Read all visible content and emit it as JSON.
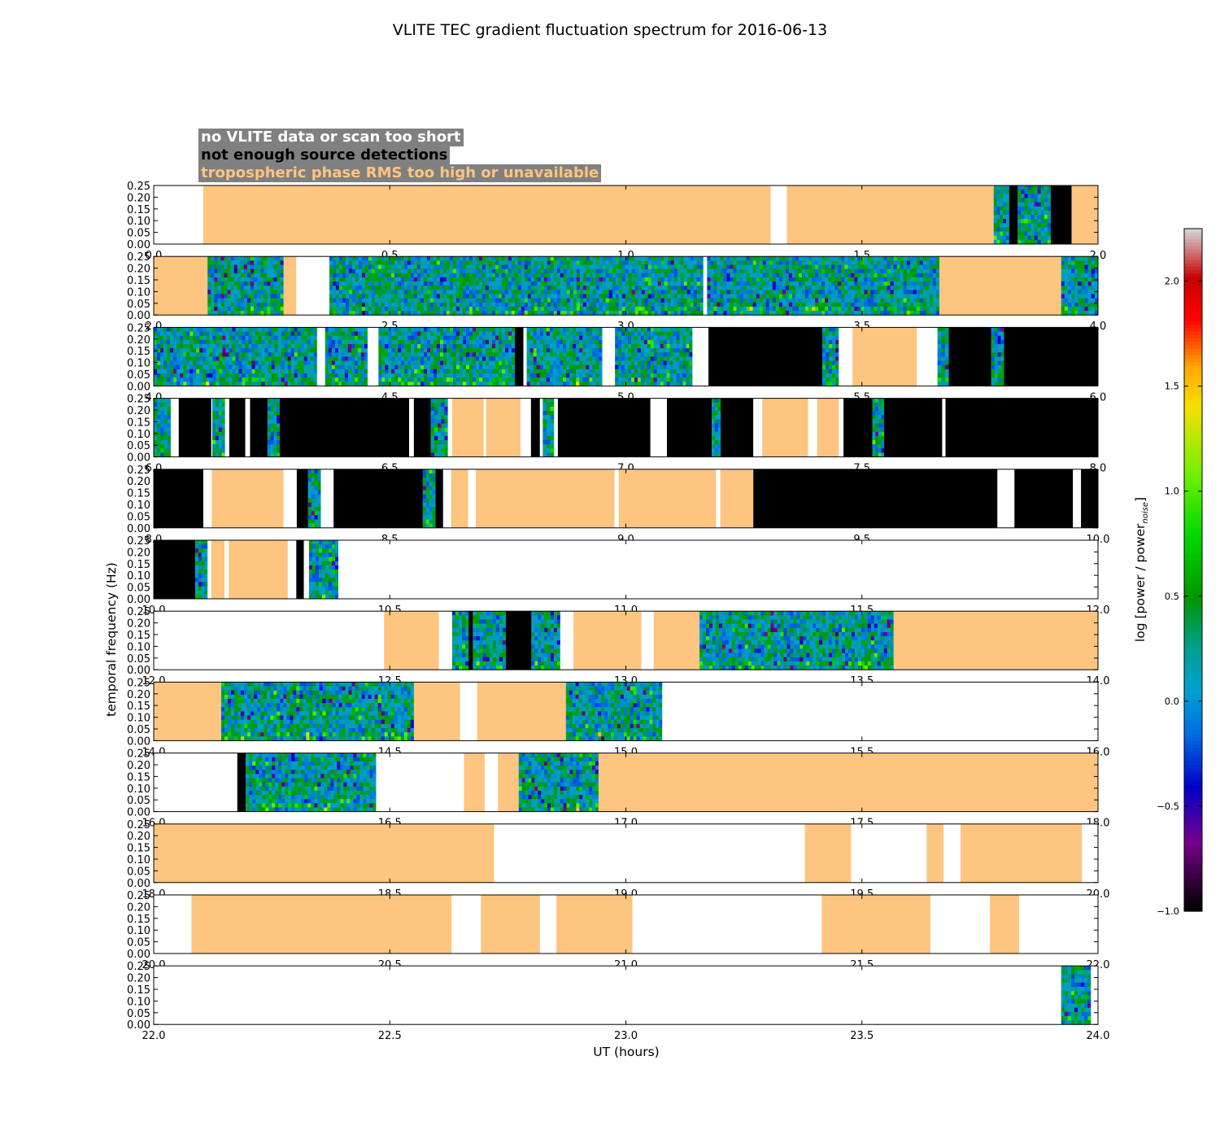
{
  "chart_data": {
    "type": "heatmap",
    "title": "VLITE TEC gradient fluctuation spectrum for 2016-06-13",
    "xlabel": "UT (hours)",
    "ylabel": "temporal frequency (Hz)",
    "ylim": [
      0.0,
      0.25
    ],
    "yticks": [
      "0.00",
      "0.05",
      "0.10",
      "0.15",
      "0.20",
      "0.25"
    ],
    "legend": [
      {
        "label": "no VLITE data or scan too short",
        "text_color": "#ffffff",
        "background": "#808080"
      },
      {
        "label": "not enough source detections",
        "text_color": "#000000",
        "background": "#808080"
      },
      {
        "label": "tropospheric phase RMS too high or unavailable",
        "text_color": "#ffc480",
        "background": "#808080"
      }
    ],
    "state_colors": {
      "nodata": "#ffffff",
      "nodetect": "#000000",
      "tropo": "#fdc57f"
    },
    "colorbar": {
      "label": "log [power / power",
      "label_sub": "noise",
      "label_end": "]",
      "range": [
        -1.0,
        2.25
      ],
      "ticks": [
        "−1.0",
        "−0.5",
        "0.0",
        "0.5",
        "1.0",
        "1.5",
        "2.0"
      ]
    },
    "rows": [
      {
        "xlim": [
          0,
          2
        ],
        "xticks": [
          "0.0",
          "0.5",
          "1.0",
          "1.5",
          "2.0"
        ],
        "segments": [
          [
            "nodata",
            0,
            0.105
          ],
          [
            "tropo",
            0.105,
            1.307
          ],
          [
            "nodata",
            1.307,
            1.341
          ],
          [
            "tropo",
            1.341,
            1.779
          ],
          [
            "spec",
            1.779,
            1.812
          ],
          [
            "nodetect",
            1.812,
            1.83
          ],
          [
            "spec",
            1.83,
            1.9
          ],
          [
            "nodetect",
            1.9,
            1.944
          ],
          [
            "tropo",
            1.944,
            2.0
          ]
        ]
      },
      {
        "xlim": [
          2,
          4
        ],
        "xticks": [
          "2.0",
          "2.5",
          "3.0",
          "3.5",
          "4.0"
        ],
        "segments": [
          [
            "tropo",
            2.0,
            2.114
          ],
          [
            "spec",
            2.114,
            2.275
          ],
          [
            "tropo",
            2.275,
            2.302
          ],
          [
            "nodata",
            2.302,
            2.372
          ],
          [
            "spec",
            2.372,
            3.164
          ],
          [
            "nodata",
            3.164,
            3.172
          ],
          [
            "spec",
            3.172,
            3.664
          ],
          [
            "tropo",
            3.664,
            3.922
          ],
          [
            "spec",
            3.922,
            4.0
          ]
        ]
      },
      {
        "xlim": [
          4,
          6
        ],
        "xticks": [
          "4.0",
          "4.5",
          "5.0",
          "5.5",
          "6.0"
        ],
        "segments": [
          [
            "spec",
            4.0,
            4.346
          ],
          [
            "nodata",
            4.346,
            4.363
          ],
          [
            "spec",
            4.363,
            4.453
          ],
          [
            "nodata",
            4.453,
            4.476
          ],
          [
            "spec",
            4.476,
            4.627
          ],
          [
            "spec",
            4.627,
            4.765
          ],
          [
            "nodetect",
            4.765,
            4.783
          ],
          [
            "nodata",
            4.783,
            4.79
          ],
          [
            "spec",
            4.79,
            4.95
          ],
          [
            "nodata",
            4.95,
            4.977
          ],
          [
            "spec",
            4.977,
            5.141
          ],
          [
            "nodata",
            5.141,
            5.175
          ],
          [
            "nodetect",
            5.175,
            5.416
          ],
          [
            "spec",
            5.416,
            5.451
          ],
          [
            "nodata",
            5.451,
            5.48
          ],
          [
            "tropo",
            5.48,
            5.616
          ],
          [
            "nodata",
            5.616,
            5.66
          ],
          [
            "spec",
            5.66,
            5.684
          ],
          [
            "nodetect",
            5.684,
            5.774
          ],
          [
            "spec",
            5.774,
            5.801
          ],
          [
            "nodetect",
            5.801,
            6.0
          ]
        ]
      },
      {
        "xlim": [
          6,
          8
        ],
        "xticks": [
          "6.0",
          "6.5",
          "7.0",
          "7.5",
          "8.0"
        ],
        "segments": [
          [
            "spec",
            6.0,
            6.036
          ],
          [
            "nodata",
            6.036,
            6.053
          ],
          [
            "nodetect",
            6.053,
            6.122
          ],
          [
            "nodata",
            6.122,
            6.124
          ],
          [
            "spec",
            6.124,
            6.151
          ],
          [
            "nodata",
            6.151,
            6.16
          ],
          [
            "nodetect",
            6.16,
            6.194
          ],
          [
            "nodata",
            6.194,
            6.204
          ],
          [
            "nodetect",
            6.204,
            6.241
          ],
          [
            "spec",
            6.241,
            6.267
          ],
          [
            "nodetect",
            6.267,
            6.541
          ],
          [
            "nodata",
            6.541,
            6.551
          ],
          [
            "nodetect",
            6.551,
            6.587
          ],
          [
            "spec",
            6.587,
            6.623
          ],
          [
            "nodata",
            6.623,
            6.632
          ],
          [
            "tropo",
            6.632,
            6.699
          ],
          [
            "nodata",
            6.699,
            6.704
          ],
          [
            "tropo",
            6.704,
            6.777
          ],
          [
            "nodata",
            6.777,
            6.799
          ],
          [
            "nodetect",
            6.799,
            6.818
          ],
          [
            "nodata",
            6.818,
            6.824
          ],
          [
            "spec",
            6.824,
            6.848
          ],
          [
            "nodata",
            6.848,
            6.856
          ],
          [
            "nodetect",
            6.856,
            7.052
          ],
          [
            "nodata",
            7.052,
            7.087
          ],
          [
            "nodetect",
            7.087,
            7.182
          ],
          [
            "spec",
            7.182,
            7.201
          ],
          [
            "nodetect",
            7.201,
            7.27
          ],
          [
            "nodata",
            7.27,
            7.289
          ],
          [
            "tropo",
            7.289,
            7.386
          ],
          [
            "nodata",
            7.386,
            7.405
          ],
          [
            "tropo",
            7.405,
            7.451
          ],
          [
            "nodata",
            7.451,
            7.461
          ],
          [
            "nodetect",
            7.461,
            7.522
          ],
          [
            "spec",
            7.522,
            7.547
          ],
          [
            "nodetect",
            7.547,
            7.67
          ],
          [
            "nodata",
            7.67,
            7.677
          ],
          [
            "nodetect",
            7.677,
            8.0
          ]
        ]
      },
      {
        "xlim": [
          8,
          10
        ],
        "xticks": [
          "8.0",
          "8.5",
          "9.0",
          "9.5",
          "10.0"
        ],
        "segments": [
          [
            "nodetect",
            8.0,
            8.105
          ],
          [
            "nodata",
            8.105,
            8.123
          ],
          [
            "tropo",
            8.123,
            8.275
          ],
          [
            "nodata",
            8.275,
            8.303
          ],
          [
            "nodetect",
            8.303,
            8.327
          ],
          [
            "spec",
            8.327,
            8.354
          ],
          [
            "nodata",
            8.354,
            8.381
          ],
          [
            "nodetect",
            8.381,
            8.57
          ],
          [
            "spec",
            8.57,
            8.597
          ],
          [
            "nodetect",
            8.597,
            8.613
          ],
          [
            "nodata",
            8.613,
            8.63
          ],
          [
            "tropo",
            8.63,
            8.666
          ],
          [
            "nodata",
            8.666,
            8.682
          ],
          [
            "tropo",
            8.682,
            8.976
          ],
          [
            "nodata",
            8.976,
            8.985
          ],
          [
            "tropo",
            8.985,
            9.191
          ],
          [
            "nodata",
            9.191,
            9.2
          ],
          [
            "tropo",
            9.2,
            9.27
          ],
          [
            "nodetect",
            9.27,
            9.787
          ],
          [
            "nodata",
            9.787,
            9.823
          ],
          [
            "nodetect",
            9.823,
            9.947
          ],
          [
            "nodata",
            9.947,
            9.964
          ],
          [
            "nodetect",
            9.964,
            10.0
          ]
        ]
      },
      {
        "xlim": [
          10,
          12
        ],
        "xticks": [
          "10.0",
          "10.5",
          "11.0",
          "11.5",
          "12.0"
        ],
        "segments": [
          [
            "nodetect",
            10.0,
            10.088
          ],
          [
            "spec",
            10.088,
            10.114
          ],
          [
            "nodata",
            10.114,
            10.122
          ],
          [
            "tropo",
            10.122,
            10.15
          ],
          [
            "nodata",
            10.15,
            10.159
          ],
          [
            "tropo",
            10.159,
            10.284
          ],
          [
            "nodata",
            10.284,
            10.302
          ],
          [
            "nodetect",
            10.302,
            10.318
          ],
          [
            "nodata",
            10.318,
            10.329
          ],
          [
            "spec",
            10.329,
            10.391
          ],
          [
            "nodata",
            10.391,
            12.0
          ]
        ]
      },
      {
        "xlim": [
          12,
          14
        ],
        "xticks": [
          "12.0",
          "12.5",
          "13.0",
          "13.5",
          "14.0"
        ],
        "segments": [
          [
            "nodata",
            12.0,
            12.488
          ],
          [
            "tropo",
            12.488,
            12.604
          ],
          [
            "nodata",
            12.604,
            12.632
          ],
          [
            "spec",
            12.632,
            12.667
          ],
          [
            "nodetect",
            12.667,
            12.676
          ],
          [
            "spec",
            12.676,
            12.746
          ],
          [
            "nodetect",
            12.746,
            12.8
          ],
          [
            "spec",
            12.8,
            12.861
          ],
          [
            "nodata",
            12.861,
            12.889
          ],
          [
            "tropo",
            12.889,
            13.033
          ],
          [
            "nodata",
            13.033,
            13.059
          ],
          [
            "tropo",
            13.059,
            13.156
          ],
          [
            "spec",
            13.156,
            13.567
          ],
          [
            "tropo",
            13.567,
            14.0
          ]
        ]
      },
      {
        "xlim": [
          14,
          16
        ],
        "xticks": [
          "14.0",
          "14.5",
          "15.0",
          "15.5",
          "16.0"
        ],
        "segments": [
          [
            "tropo",
            14.0,
            14.143
          ],
          [
            "spec",
            14.143,
            14.551
          ],
          [
            "tropo",
            14.551,
            14.649
          ],
          [
            "nodata",
            14.649,
            14.685
          ],
          [
            "tropo",
            14.685,
            14.873
          ],
          [
            "spec",
            14.873,
            15.077
          ],
          [
            "nodata",
            15.077,
            16.0
          ]
        ]
      },
      {
        "xlim": [
          16,
          18
        ],
        "xticks": [
          "16.0",
          "16.5",
          "17.0",
          "17.5",
          "18.0"
        ],
        "segments": [
          [
            "nodata",
            16.0,
            16.177
          ],
          [
            "nodetect",
            16.177,
            16.195
          ],
          [
            "spec",
            16.195,
            16.471
          ],
          [
            "nodata",
            16.471,
            16.657
          ],
          [
            "tropo",
            16.657,
            16.701
          ],
          [
            "nodata",
            16.701,
            16.729
          ],
          [
            "tropo",
            16.729,
            16.773
          ],
          [
            "spec",
            16.773,
            16.942
          ],
          [
            "tropo",
            16.942,
            18.0
          ]
        ]
      },
      {
        "xlim": [
          18,
          20
        ],
        "xticks": [
          "18.0",
          "18.5",
          "19.0",
          "19.5",
          "20.0"
        ],
        "segments": [
          [
            "tropo",
            18.0,
            18.721
          ],
          [
            "nodata",
            18.721,
            19.379
          ],
          [
            "tropo",
            19.379,
            19.477
          ],
          [
            "nodata",
            19.477,
            19.637
          ],
          [
            "tropo",
            19.637,
            19.673
          ],
          [
            "nodata",
            19.673,
            19.709
          ],
          [
            "tropo",
            19.709,
            19.966
          ],
          [
            "nodata",
            19.966,
            20.0
          ]
        ]
      },
      {
        "xlim": [
          20,
          22
        ],
        "xticks": [
          "20.0",
          "20.5",
          "21.0",
          "21.5",
          "22.0"
        ],
        "segments": [
          [
            "nodata",
            20.0,
            20.08
          ],
          [
            "tropo",
            20.08,
            20.631
          ],
          [
            "nodata",
            20.631,
            20.693
          ],
          [
            "tropo",
            20.693,
            20.818
          ],
          [
            "nodata",
            20.818,
            20.853
          ],
          [
            "tropo",
            20.853,
            21.014
          ],
          [
            "nodata",
            21.014,
            21.415
          ],
          [
            "tropo",
            21.415,
            21.645
          ],
          [
            "nodata",
            21.645,
            21.771
          ],
          [
            "tropo",
            21.771,
            21.833
          ],
          [
            "nodata",
            21.833,
            22.0
          ]
        ]
      },
      {
        "xlim": [
          22,
          24
        ],
        "xticks": [
          "22.0",
          "22.5",
          "23.0",
          "23.5",
          "24.0"
        ],
        "segments": [
          [
            "nodata",
            22.0,
            23.922
          ],
          [
            "spec",
            23.922,
            23.985
          ],
          [
            "nodata",
            23.985,
            24.0
          ]
        ]
      }
    ]
  }
}
